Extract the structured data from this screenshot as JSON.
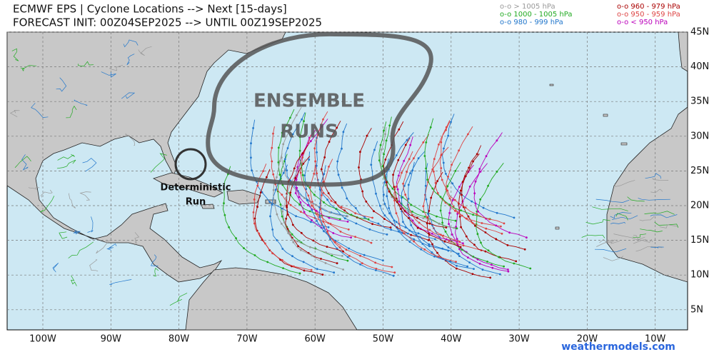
{
  "header": {
    "title": "ECMWF EPS | Cyclone Locations --> Next [15-days]",
    "subtitle": "FORECAST INIT: 00Z04SEP2025 --> UNTIL 00Z19SEP2025"
  },
  "legend": [
    {
      "label": "o-o > 1005 hPa",
      "color": "#999999"
    },
    {
      "label": "o-o 1000 - 1005 hPa",
      "color": "#22aa22"
    },
    {
      "label": "o-o 980 - 999 hPa",
      "color": "#2277cc"
    },
    {
      "label": "o-o 960 - 979 hPa",
      "color": "#aa0000"
    },
    {
      "label": "o-o 950 - 959 hPa",
      "color": "#dd4444"
    },
    {
      "label": "o-o < 950 hPa",
      "color": "#bb00bb"
    }
  ],
  "annotations": {
    "ensemble": [
      "ENSEMBLE",
      "RUNS"
    ],
    "deterministic": [
      "Deterministic",
      "Run"
    ]
  },
  "axes": {
    "longitude_labels": [
      "100W",
      "90W",
      "80W",
      "70W",
      "60W",
      "50W",
      "40W",
      "30W",
      "20W",
      "10W"
    ],
    "latitude_labels": [
      "45N",
      "40N",
      "35N",
      "30N",
      "25N",
      "20N",
      "15N",
      "10N",
      "5N"
    ]
  },
  "footer": {
    "watermark": "weathermodels.com"
  }
}
